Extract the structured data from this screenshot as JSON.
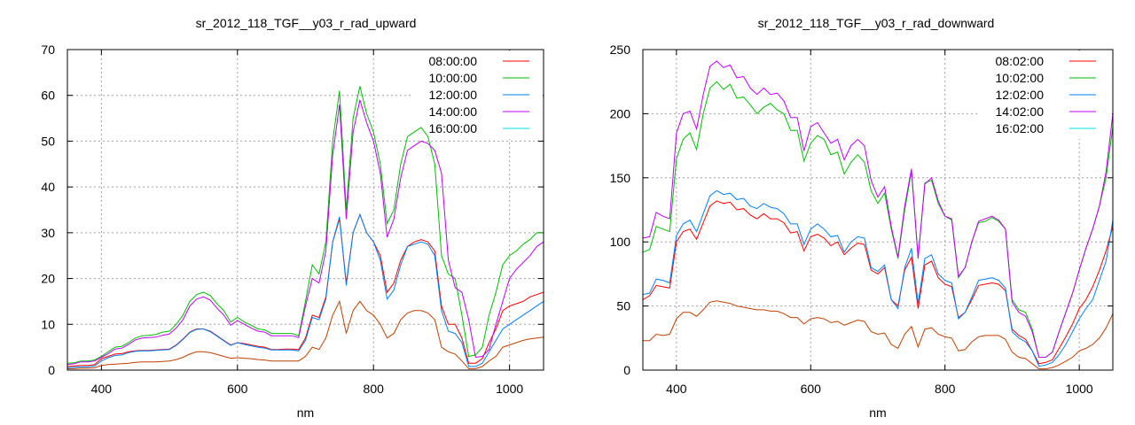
{
  "chart_data": [
    {
      "type": "line",
      "title": "sr_2012_118_TGF__y03_r_rad_upward",
      "xlabel": "nm",
      "ylabel": "",
      "xlim": [
        350,
        1050
      ],
      "ylim": [
        0,
        70
      ],
      "xticks": [
        400,
        600,
        800,
        1000
      ],
      "yticks": [
        0,
        10,
        20,
        30,
        40,
        50,
        60,
        70
      ],
      "grid": true,
      "legend_position": "top-right",
      "x_step": 10,
      "series": [
        {
          "name": "08:00:00",
          "color": "#ff0000",
          "legend_color": "#ff0000",
          "values": [
            0.8,
            0.9,
            1,
            1,
            1.2,
            2.5,
            3,
            3.5,
            3.6,
            4,
            4.2,
            4.3,
            4.3,
            4.4,
            4.5,
            4.6,
            5.5,
            6.8,
            8.3,
            9,
            9,
            8.5,
            7.5,
            6.5,
            5.5,
            6,
            5.8,
            5.5,
            5.2,
            5,
            4.5,
            4.5,
            4.6,
            4.6,
            4.5,
            7,
            12,
            11.5,
            16,
            28,
            33,
            19,
            30,
            34,
            30,
            28,
            25,
            17,
            19,
            24,
            27,
            28,
            28.5,
            28,
            26,
            14,
            10,
            10,
            7,
            1.5,
            1.5,
            2.5,
            6,
            9,
            13,
            14,
            14.5,
            15,
            16,
            16.5,
            17
          ]
        },
        {
          "name": "10:00:00",
          "color": "#00c000",
          "legend_color": "#00c000",
          "values": [
            1.5,
            1.6,
            2,
            2,
            2.2,
            3,
            4,
            5,
            5.2,
            6,
            7,
            7.5,
            7.6,
            7.8,
            8.3,
            8.5,
            10,
            12,
            15,
            16.5,
            17,
            16.3,
            14.5,
            13,
            10.5,
            11.5,
            10.5,
            9.8,
            9,
            8.8,
            8,
            8,
            8,
            8,
            7.5,
            15,
            23,
            21,
            28,
            50,
            61,
            35,
            55,
            62,
            56,
            52,
            45,
            32,
            35,
            45,
            51,
            52,
            53,
            51,
            45,
            25,
            21,
            20,
            12,
            3,
            3.3,
            5,
            12,
            17,
            23,
            25,
            26,
            27.5,
            28.5,
            30,
            30
          ]
        },
        {
          "name": "12:00:00",
          "color": "#0080ff",
          "legend_color": "#0080ff",
          "values": [
            0.5,
            0.6,
            0.7,
            0.7,
            0.9,
            2,
            2.7,
            3.2,
            3.3,
            3.8,
            4.1,
            4.2,
            4.2,
            4.3,
            4.4,
            4.5,
            5.4,
            6.7,
            8.2,
            8.9,
            9,
            8.4,
            7.4,
            6.4,
            5.4,
            6,
            5.6,
            5.3,
            5,
            4.8,
            4.4,
            4.4,
            4.4,
            4.4,
            4.2,
            6.5,
            11.5,
            11,
            15.5,
            28,
            33.5,
            18.5,
            30,
            34,
            30,
            28,
            24,
            15.5,
            17.5,
            23,
            27,
            27.5,
            28,
            27.5,
            25,
            13,
            8.5,
            8,
            6,
            0.8,
            0.8,
            1.5,
            4,
            6.5,
            9,
            10,
            11,
            12,
            13,
            14,
            15
          ]
        },
        {
          "name": "14:00:00",
          "color": "#c000ff",
          "legend_color": "#c000ff",
          "values": [
            1.2,
            1.4,
            1.8,
            1.8,
            2,
            2.8,
            3.6,
            4.6,
            4.8,
            5.6,
            6.6,
            7,
            7.1,
            7.2,
            7.6,
            7.9,
            9.2,
            11,
            14,
            15.5,
            16,
            15.3,
            13.5,
            12,
            9.8,
            10.8,
            10,
            9.2,
            8.5,
            8.3,
            7.5,
            7.5,
            7.5,
            7.5,
            7.1,
            14,
            20,
            19,
            26,
            47,
            58,
            33,
            52,
            59,
            54,
            50,
            43,
            29,
            33,
            42,
            48,
            49,
            50,
            49.5,
            48,
            43,
            24,
            18,
            17,
            11,
            2.8,
            3,
            4.5,
            10,
            15,
            20,
            22,
            23.5,
            25,
            27,
            28
          ]
        },
        {
          "name": "16:00:00",
          "color": "#c04000",
          "legend_color": "#00e0e0",
          "values": [
            0.3,
            0.3,
            0.4,
            0.4,
            0.5,
            1,
            1.2,
            1.3,
            1.4,
            1.5,
            1.7,
            1.8,
            1.8,
            1.8,
            1.9,
            2,
            2.3,
            2.8,
            3.5,
            4,
            4,
            3.8,
            3.4,
            3,
            2.6,
            2.7,
            2.6,
            2.5,
            2.3,
            2.2,
            2,
            2,
            2,
            2,
            2,
            3,
            5,
            4.5,
            7,
            12,
            15,
            8,
            13,
            15,
            13,
            12,
            10,
            7,
            8,
            11,
            12.5,
            13,
            13,
            12.5,
            11,
            5,
            4,
            3.5,
            2,
            0.3,
            0.3,
            0.8,
            2,
            3,
            5,
            5.5,
            6,
            6.5,
            6.8,
            7,
            7.2
          ]
        }
      ]
    },
    {
      "type": "line",
      "title": "sr_2012_118_TGF__y03_r_rad_downward",
      "xlabel": "nm",
      "ylabel": "",
      "xlim": [
        350,
        1050
      ],
      "ylim": [
        0,
        250
      ],
      "xticks": [
        400,
        600,
        800,
        1000
      ],
      "yticks": [
        0,
        50,
        100,
        150,
        200,
        250
      ],
      "grid": true,
      "legend_position": "top-right",
      "x_step": 10,
      "series": [
        {
          "name": "08:02:00",
          "color": "#ff0000",
          "legend_color": "#ff0000",
          "values": [
            55,
            58,
            66,
            65,
            64,
            100,
            108,
            110,
            102,
            115,
            128,
            132,
            130,
            131,
            125,
            126,
            121,
            118,
            122,
            118,
            118,
            115,
            107,
            108,
            93,
            104,
            106,
            103,
            97,
            100,
            90,
            95,
            99,
            98,
            78,
            75,
            80,
            55,
            50,
            78,
            88,
            48,
            82,
            85,
            72,
            67,
            65,
            41,
            45,
            55,
            66,
            67,
            68,
            67,
            62,
            32,
            27,
            24,
            15,
            5,
            6,
            8,
            17,
            26,
            36,
            48,
            55,
            65,
            78,
            93,
            112
          ]
        },
        {
          "name": "10:02:00",
          "color": "#00c000",
          "legend_color": "#00c000",
          "values": [
            92,
            94,
            112,
            110,
            108,
            165,
            180,
            185,
            172,
            200,
            220,
            225,
            219,
            223,
            212,
            213,
            207,
            200,
            205,
            208,
            203,
            200,
            187,
            187,
            163,
            177,
            183,
            180,
            168,
            170,
            153,
            162,
            168,
            162,
            140,
            130,
            138,
            110,
            87,
            125,
            155,
            88,
            146,
            148,
            130,
            120,
            117,
            72,
            80,
            100,
            115,
            116,
            119,
            116,
            110,
            55,
            47,
            45,
            32,
            10,
            10,
            14,
            30,
            45,
            60,
            78,
            95,
            110,
            128,
            150,
            190
          ]
        },
        {
          "name": "12:02:00",
          "color": "#0080ff",
          "legend_color": "#0080ff",
          "values": [
            59,
            60,
            71,
            70,
            68,
            105,
            114,
            117,
            108,
            122,
            136,
            140,
            137,
            138,
            133,
            134,
            128,
            126,
            130,
            127,
            126,
            122,
            114,
            114,
            98,
            110,
            114,
            110,
            104,
            105,
            92,
            100,
            104,
            103,
            80,
            77,
            82,
            55,
            48,
            80,
            95,
            52,
            87,
            90,
            75,
            70,
            68,
            40,
            45,
            57,
            70,
            71,
            72,
            70,
            64,
            30,
            25,
            22,
            15,
            3,
            4,
            6,
            12,
            20,
            30,
            40,
            48,
            55,
            70,
            85,
            117
          ]
        },
        {
          "name": "14:02:00",
          "color": "#c000ff",
          "legend_color": "#c000ff",
          "values": [
            103,
            104,
            123,
            120,
            118,
            185,
            200,
            202,
            188,
            215,
            237,
            241,
            236,
            238,
            228,
            229,
            220,
            215,
            220,
            215,
            216,
            210,
            197,
            197,
            171,
            190,
            193,
            185,
            177,
            180,
            164,
            175,
            180,
            175,
            148,
            135,
            143,
            112,
            88,
            128,
            157,
            87,
            145,
            150,
            132,
            120,
            118,
            73,
            80,
            100,
            116,
            118,
            120,
            117,
            110,
            53,
            45,
            42,
            30,
            10,
            10,
            14,
            30,
            45,
            60,
            78,
            95,
            110,
            128,
            155,
            200
          ]
        },
        {
          "name": "16:02:00",
          "color": "#c04000",
          "legend_color": "#00e0e0",
          "values": [
            23,
            23,
            28,
            27,
            28,
            40,
            45,
            45,
            42,
            47,
            53,
            54,
            53,
            52,
            50,
            49,
            48,
            47,
            47,
            46,
            46,
            44,
            41,
            41,
            36,
            40,
            41,
            40,
            37,
            38,
            35,
            37,
            39,
            38,
            30,
            28,
            29,
            20,
            17,
            28,
            34,
            18,
            32,
            33,
            28,
            26,
            25,
            15,
            16,
            22,
            26,
            27,
            27,
            27,
            24,
            14,
            10,
            9,
            5,
            1,
            1,
            2,
            4,
            7,
            10,
            15,
            17,
            20,
            25,
            33,
            44
          ]
        }
      ]
    }
  ]
}
